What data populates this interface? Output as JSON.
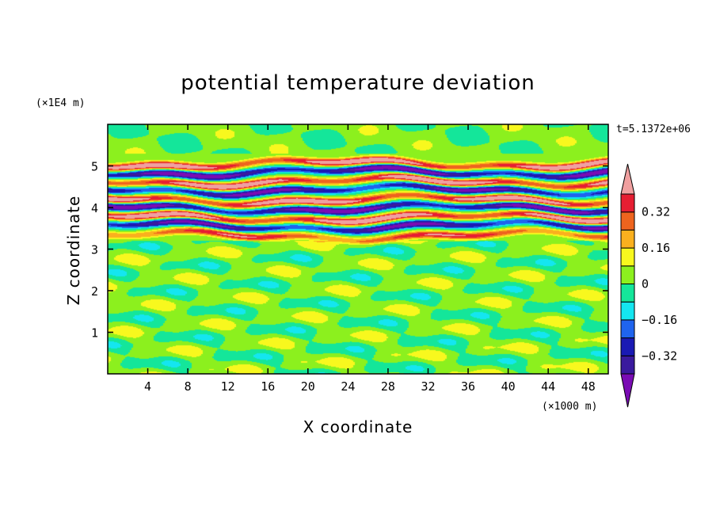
{
  "chart_data": {
    "type": "heatmap",
    "title": "potential temperature deviation",
    "xlabel": "X coordinate",
    "ylabel": "Z coordinate",
    "x_unit": "(×1000 m)",
    "y_unit": "(×1E4 m)",
    "time_label": "t=5.1372e+06",
    "xlim": [
      0,
      50
    ],
    "ylim": [
      0,
      6
    ],
    "x_ticks": [
      4,
      8,
      12,
      16,
      20,
      24,
      28,
      32,
      36,
      40,
      44,
      48
    ],
    "x_tick_labels": [
      "4",
      "8",
      "12",
      "16",
      "20",
      "24",
      "28",
      "32",
      "36",
      "40",
      "44",
      "48"
    ],
    "y_ticks": [
      1,
      2,
      3,
      4,
      5
    ],
    "y_tick_labels": [
      "1",
      "2",
      "3",
      "4",
      "5"
    ],
    "colorbar": {
      "levels": [
        -0.48,
        -0.4,
        -0.32,
        -0.24,
        -0.16,
        -0.08,
        0,
        0.08,
        0.16,
        0.24,
        0.32,
        0.4,
        0.48
      ],
      "colors": [
        "#7a0cb4",
        "#3a1a9e",
        "#1a1ab4",
        "#1f64ee",
        "#14e6f0",
        "#14e69a",
        "#8cf01e",
        "#f8f81e",
        "#fab01e",
        "#ee641e",
        "#e61e32",
        "#f0a0a0"
      ],
      "tick_values": [
        -0.32,
        -0.16,
        0,
        0.16,
        0.32
      ],
      "tick_labels": [
        "-0.32",
        "-0.16",
        "0",
        "0.16",
        "0.32"
      ],
      "extend": "both"
    },
    "field": {
      "description_layers": [
        {
          "z": 5.05,
          "amp": 0.55,
          "sign": 1
        },
        {
          "z": 4.85,
          "amp": 0.55,
          "sign": -1
        },
        {
          "z": 4.62,
          "amp": 0.55,
          "sign": 1
        },
        {
          "z": 4.42,
          "amp": 0.5,
          "sign": -1
        },
        {
          "z": 4.18,
          "amp": 0.55,
          "sign": 1
        },
        {
          "z": 3.98,
          "amp": 0.55,
          "sign": -1
        },
        {
          "z": 3.75,
          "amp": 0.55,
          "sign": 1
        },
        {
          "z": 3.55,
          "amp": 0.5,
          "sign": -1
        },
        {
          "z": 3.32,
          "amp": 0.4,
          "sign": 1
        }
      ],
      "background_value": 0.02
    }
  }
}
